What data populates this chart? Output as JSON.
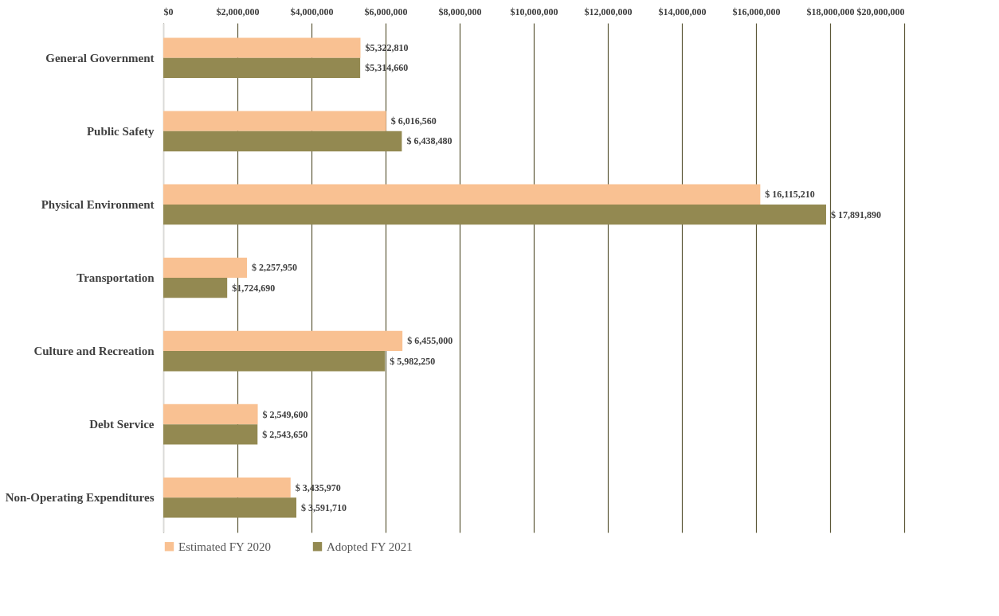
{
  "chart_data": {
    "type": "bar",
    "orientation": "horizontal",
    "categories": [
      "General Government",
      "Public Safety",
      "Physical Environment",
      "Transportation",
      "Culture and Recreation",
      "Debt Service",
      "Non-Operating Expenditures"
    ],
    "series": [
      {
        "name": "Estimated FY 2020",
        "color": "#f9c192",
        "values": [
          5322810,
          6016560,
          16115210,
          2257950,
          6455000,
          2549600,
          3435970
        ],
        "value_labels": [
          "$5,322,810",
          "$ 6,016,560",
          "$ 16,115,210",
          "$ 2,257,950",
          "$ 6,455,000",
          "$ 2,549,600",
          "$ 3,435,970"
        ]
      },
      {
        "name": "Adopted FY 2021",
        "color": "#938951",
        "values": [
          5314660,
          6438480,
          17891890,
          1724690,
          5982250,
          2543650,
          3591710
        ],
        "value_labels": [
          "$5,314,660",
          "$ 6,438,480",
          "$ 17,891,890",
          "$1,724,690",
          "$ 5,982,250",
          "$ 2,543,650",
          "$ 3,591,710"
        ]
      }
    ],
    "xlim": [
      0,
      20000000
    ],
    "xticks": [
      {
        "value": 0,
        "label": "$0"
      },
      {
        "value": 2000000,
        "label": "$2,000,000"
      },
      {
        "value": 4000000,
        "label": "$4,000,000"
      },
      {
        "value": 6000000,
        "label": "$6,000,000"
      },
      {
        "value": 8000000,
        "label": "$8,000,000"
      },
      {
        "value": 10000000,
        "label": "$10,000,000"
      },
      {
        "value": 12000000,
        "label": "$12,000,000"
      },
      {
        "value": 14000000,
        "label": "$14,000,000"
      },
      {
        "value": 16000000,
        "label": "$16,000,000"
      },
      {
        "value": 18000000,
        "label": "$18,000,000"
      },
      {
        "value": 20000000,
        "label": "$20,000,000"
      }
    ],
    "grid": "x",
    "legend": "bottom"
  }
}
